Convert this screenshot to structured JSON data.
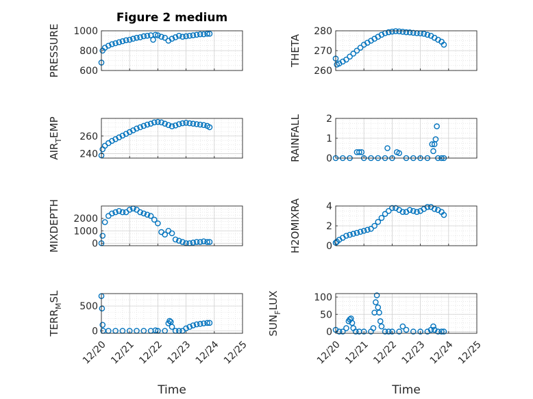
{
  "chart_data": [
    {
      "type": "scatter",
      "title": "Figure 2 medium",
      "ylabel": "PRESSURE",
      "xlim": [
        "12/20",
        "12/25"
      ],
      "ylim": [
        600,
        1000
      ],
      "yticks": [
        "600",
        "800",
        "1000"
      ],
      "marker_color": "#0072BD",
      "grid": true,
      "x": [
        "12/20 00:00",
        "12/20 01:00",
        "12/20 03:00",
        "12/20 06:00",
        "12/20 09:00",
        "12/20 12:00",
        "12/20 15:00",
        "12/20 18:00",
        "12/20 21:00",
        "12/21 00:00",
        "12/21 03:00",
        "12/21 06:00",
        "12/21 09:00",
        "12/21 12:00",
        "12/21 15:00",
        "12/21 18:00",
        "12/21 20:00",
        "12/21 22:00",
        "12/22 00:00",
        "12/22 03:00",
        "12/22 06:00",
        "12/22 09:00",
        "12/22 12:00",
        "12/22 15:00",
        "12/22 18:00",
        "12/22 21:00",
        "12/23 00:00",
        "12/23 03:00",
        "12/23 06:00",
        "12/23 09:00",
        "12/23 12:00",
        "12/23 15:00",
        "12/23 18:00",
        "12/23 20:00"
      ],
      "y": [
        680,
        800,
        830,
        850,
        865,
        875,
        885,
        895,
        905,
        910,
        920,
        930,
        935,
        945,
        950,
        955,
        910,
        960,
        955,
        940,
        930,
        900,
        920,
        935,
        950,
        940,
        945,
        950,
        955,
        960,
        965,
        965,
        970,
        970
      ]
    },
    {
      "type": "scatter",
      "ylabel": "THETA",
      "xlim": [
        "12/20",
        "12/25"
      ],
      "ylim": [
        260,
        280
      ],
      "yticks": [
        "260",
        "270",
        "280"
      ],
      "marker_color": "#0072BD",
      "grid": true,
      "x": [
        "12/20 00:00",
        "12/20 01:00",
        "12/20 03:00",
        "12/20 06:00",
        "12/20 09:00",
        "12/20 12:00",
        "12/20 15:00",
        "12/20 18:00",
        "12/20 21:00",
        "12/21 00:00",
        "12/21 03:00",
        "12/21 06:00",
        "12/21 09:00",
        "12/21 12:00",
        "12/21 15:00",
        "12/21 18:00",
        "12/21 21:00",
        "12/22 00:00",
        "12/22 03:00",
        "12/22 06:00",
        "12/22 09:00",
        "12/22 12:00",
        "12/22 15:00",
        "12/22 18:00",
        "12/22 21:00",
        "12/23 00:00",
        "12/23 03:00",
        "12/23 06:00",
        "12/23 09:00",
        "12/23 12:00",
        "12/23 15:00",
        "12/23 18:00",
        "12/23 20:00"
      ],
      "y": [
        266,
        263,
        263.5,
        264.5,
        265.5,
        267,
        268.5,
        270,
        271.5,
        273,
        274,
        275,
        276,
        277,
        278,
        278.8,
        279.3,
        279.6,
        279.8,
        279.7,
        279.5,
        279.3,
        279.2,
        279,
        278.8,
        278.7,
        278.5,
        278,
        277.5,
        276.5,
        275.5,
        274.5,
        273
      ]
    },
    {
      "type": "scatter",
      "ylabel": "AIR_TEMP",
      "xlim": [
        "12/20",
        "12/25"
      ],
      "ylim": [
        235,
        280
      ],
      "yticks": [
        "240",
        "260"
      ],
      "marker_color": "#0072BD",
      "grid": true,
      "x": [
        "12/20 00:00",
        "12/20 01:00",
        "12/20 03:00",
        "12/20 06:00",
        "12/20 09:00",
        "12/20 12:00",
        "12/20 15:00",
        "12/20 18:00",
        "12/20 21:00",
        "12/21 00:00",
        "12/21 03:00",
        "12/21 06:00",
        "12/21 09:00",
        "12/21 12:00",
        "12/21 15:00",
        "12/21 18:00",
        "12/21 21:00",
        "12/22 00:00",
        "12/22 03:00",
        "12/22 06:00",
        "12/22 09:00",
        "12/22 12:00",
        "12/22 15:00",
        "12/22 18:00",
        "12/22 21:00",
        "12/23 00:00",
        "12/23 03:00",
        "12/23 06:00",
        "12/23 09:00",
        "12/23 12:00",
        "12/23 15:00",
        "12/23 18:00",
        "12/23 20:00"
      ],
      "y": [
        238,
        245,
        249,
        252,
        254.5,
        256.5,
        258.5,
        260.5,
        262.5,
        264.5,
        266.5,
        268.5,
        270,
        271.5,
        273,
        274,
        275.5,
        276,
        275.5,
        274,
        272.5,
        271,
        272,
        273.5,
        274.5,
        275,
        274.5,
        274,
        273.5,
        273,
        272.5,
        271.5,
        270
      ]
    },
    {
      "type": "scatter",
      "ylabel": "RAINFALL",
      "xlim": [
        "12/20",
        "12/25"
      ],
      "ylim": [
        0,
        2
      ],
      "yticks": [
        "0",
        "1",
        "2"
      ],
      "marker_color": "#0072BD",
      "grid": true,
      "x": [
        "12/20 00:00",
        "12/20 06:00",
        "12/20 12:00",
        "12/20 18:00",
        "12/20 20:00",
        "12/20 22:00",
        "12/21 00:00",
        "12/21 06:00",
        "12/21 12:00",
        "12/21 18:00",
        "12/21 20:00",
        "12/22 00:00",
        "12/22 04:00",
        "12/22 06:00",
        "12/22 12:00",
        "12/22 18:00",
        "12/23 00:00",
        "12/23 06:00",
        "12/23 10:00",
        "12/23 11:00",
        "12/23 12:00",
        "12/23 13:00",
        "12/23 14:00",
        "12/23 15:00",
        "12/23 18:00",
        "12/23 20:00"
      ],
      "y": [
        0,
        0,
        0,
        0.3,
        0.3,
        0.3,
        0,
        0,
        0,
        0,
        0.5,
        0,
        0.3,
        0.25,
        0,
        0,
        0,
        0,
        0.7,
        0.35,
        0.7,
        0.95,
        1.6,
        0,
        0,
        0
      ]
    },
    {
      "type": "scatter",
      "ylabel": "MIXDEPTH",
      "xlim": [
        "12/20",
        "12/25"
      ],
      "ylim": [
        -200,
        3000
      ],
      "yticks": [
        "0",
        "1000",
        "2000"
      ],
      "marker_color": "#0072BD",
      "grid": true,
      "x": [
        "12/20 00:00",
        "12/20 01:00",
        "12/20 03:00",
        "12/20 06:00",
        "12/20 09:00",
        "12/20 12:00",
        "12/20 15:00",
        "12/20 18:00",
        "12/20 21:00",
        "12/21 00:00",
        "12/21 03:00",
        "12/21 06:00",
        "12/21 09:00",
        "12/21 12:00",
        "12/21 15:00",
        "12/21 18:00",
        "12/21 21:00",
        "12/22 00:00",
        "12/22 03:00",
        "12/22 06:00",
        "12/22 09:00",
        "12/22 12:00",
        "12/22 15:00",
        "12/22 18:00",
        "12/22 21:00",
        "12/23 00:00",
        "12/23 03:00",
        "12/23 06:00",
        "12/23 09:00",
        "12/23 12:00",
        "12/23 15:00",
        "12/23 18:00",
        "12/23 20:00"
      ],
      "y": [
        0,
        600,
        1700,
        2200,
        2400,
        2500,
        2600,
        2500,
        2500,
        2700,
        2800,
        2700,
        2500,
        2400,
        2300,
        2200,
        1900,
        1600,
        900,
        700,
        1000,
        800,
        300,
        200,
        100,
        0,
        0,
        50,
        100,
        100,
        150,
        100,
        100
      ]
    },
    {
      "type": "scatter",
      "ylabel": "H2OMIXRA",
      "xlim": [
        "12/20",
        "12/25"
      ],
      "ylim": [
        0,
        4
      ],
      "yticks": [
        "0",
        "2",
        "4"
      ],
      "marker_color": "#0072BD",
      "grid": true,
      "x": [
        "12/20 00:00",
        "12/20 01:00",
        "12/20 03:00",
        "12/20 06:00",
        "12/20 09:00",
        "12/20 12:00",
        "12/20 15:00",
        "12/20 18:00",
        "12/20 21:00",
        "12/21 00:00",
        "12/21 03:00",
        "12/21 06:00",
        "12/21 09:00",
        "12/21 12:00",
        "12/21 15:00",
        "12/21 18:00",
        "12/21 21:00",
        "12/22 00:00",
        "12/22 03:00",
        "12/22 06:00",
        "12/22 09:00",
        "12/22 12:00",
        "12/22 15:00",
        "12/22 18:00",
        "12/22 21:00",
        "12/23 00:00",
        "12/23 03:00",
        "12/23 06:00",
        "12/23 09:00",
        "12/23 12:00",
        "12/23 15:00",
        "12/23 18:00",
        "12/23 20:00"
      ],
      "y": [
        0.3,
        0.4,
        0.6,
        0.8,
        1.0,
        1.1,
        1.2,
        1.3,
        1.4,
        1.5,
        1.6,
        1.7,
        2.0,
        2.4,
        2.8,
        3.2,
        3.5,
        3.8,
        3.8,
        3.6,
        3.4,
        3.4,
        3.6,
        3.5,
        3.4,
        3.5,
        3.7,
        3.9,
        3.9,
        3.7,
        3.6,
        3.4,
        3.1
      ]
    },
    {
      "type": "scatter",
      "ylabel": "TERR_MSL",
      "xlim": [
        "12/20",
        "12/25"
      ],
      "ylim": [
        -50,
        750
      ],
      "yticks": [
        "0",
        "500"
      ],
      "xticks": [
        "12/20",
        "12/21",
        "12/22",
        "12/23",
        "12/24",
        "12/25"
      ],
      "xlabel": "Time",
      "marker_color": "#0072BD",
      "grid": true,
      "x": [
        "12/20 00:00",
        "12/20 00:30",
        "12/20 01:00",
        "12/20 01:30",
        "12/20 06:00",
        "12/20 12:00",
        "12/20 18:00",
        "12/21 00:00",
        "12/21 06:00",
        "12/21 12:00",
        "12/21 18:00",
        "12/21 22:00",
        "12/22 00:00",
        "12/22 06:00",
        "12/22 09:00",
        "12/22 10:00",
        "12/22 11:00",
        "12/22 12:00",
        "12/22 15:00",
        "12/22 18:00",
        "12/22 21:00",
        "12/23 00:00",
        "12/23 03:00",
        "12/23 06:00",
        "12/23 09:00",
        "12/23 12:00",
        "12/23 15:00",
        "12/23 18:00",
        "12/23 20:00"
      ],
      "y": [
        700,
        450,
        120,
        0,
        0,
        0,
        0,
        0,
        0,
        0,
        0,
        10,
        0,
        0,
        150,
        200,
        180,
        80,
        0,
        0,
        0,
        50,
        80,
        110,
        130,
        140,
        150,
        160,
        160
      ]
    },
    {
      "type": "scatter",
      "ylabel": "SUN_FLUX",
      "xlim": [
        "12/20",
        "12/25"
      ],
      "ylim": [
        -5,
        110
      ],
      "yticks": [
        "0",
        "50",
        "100"
      ],
      "xticks": [
        "12/20",
        "12/21",
        "12/22",
        "12/23",
        "12/24",
        "12/25"
      ],
      "xlabel": "Time",
      "marker_color": "#0072BD",
      "grid": true,
      "x": [
        "12/20 00:00",
        "12/20 03:00",
        "12/20 06:00",
        "12/20 09:00",
        "12/20 11:00",
        "12/20 12:00",
        "12/20 13:00",
        "12/20 14:00",
        "12/20 15:00",
        "12/20 17:00",
        "12/20 20:00",
        "12/21 00:00",
        "12/21 06:00",
        "12/21 08:00",
        "12/21 09:00",
        "12/21 10:00",
        "12/21 11:00",
        "12/21 12:00",
        "12/21 13:00",
        "12/21 14:00",
        "12/21 15:00",
        "12/21 18:00",
        "12/21 21:00",
        "12/22 00:00",
        "12/22 06:00",
        "12/22 09:00",
        "12/22 12:00",
        "12/22 18:00",
        "12/23 00:00",
        "12/23 06:00",
        "12/23 09:00",
        "12/23 11:00",
        "12/23 12:00",
        "12/23 15:00",
        "12/23 18:00",
        "12/23 20:00"
      ],
      "y": [
        5,
        0,
        0,
        10,
        30,
        35,
        38,
        25,
        10,
        0,
        0,
        0,
        0,
        10,
        55,
        85,
        105,
        70,
        55,
        30,
        15,
        0,
        0,
        0,
        0,
        15,
        5,
        0,
        0,
        0,
        5,
        15,
        5,
        0,
        0,
        0
      ]
    }
  ]
}
